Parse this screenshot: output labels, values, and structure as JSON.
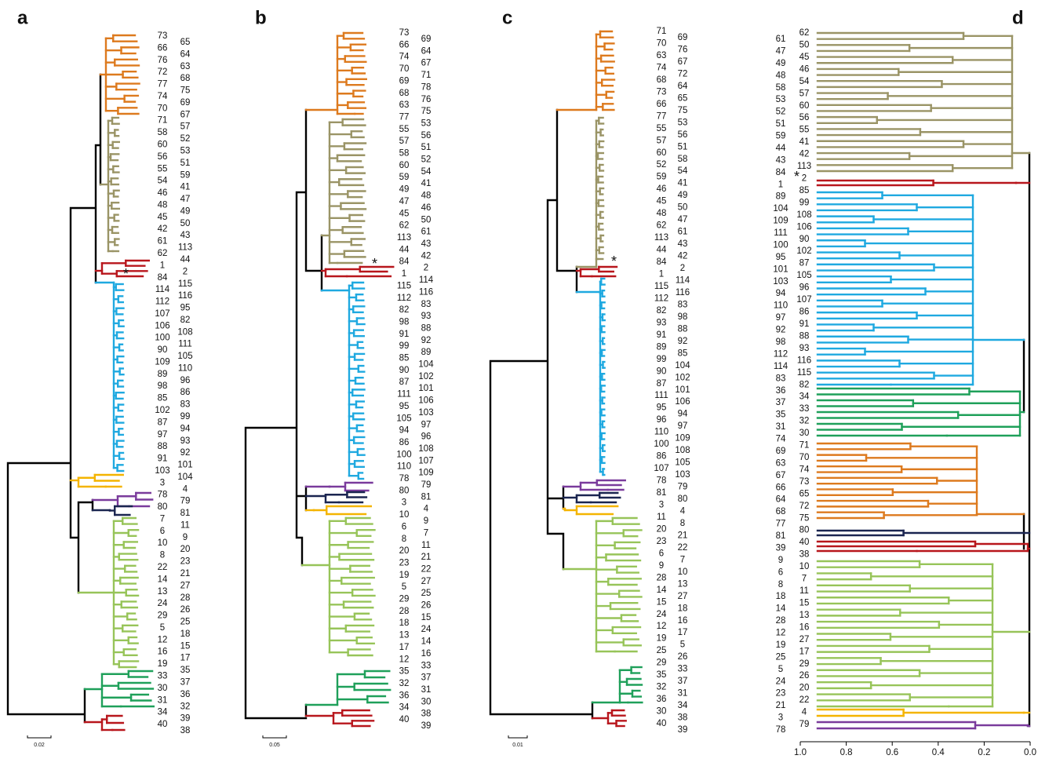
{
  "panels": [
    {
      "letter": "a",
      "asterisk": "*",
      "scale_bar": "0.02",
      "leaves_left": [
        "73",
        "66",
        "76",
        "72",
        "77",
        "74",
        "70",
        "71",
        "58",
        "60",
        "56",
        "55",
        "54",
        "46",
        "48",
        "45",
        "42",
        "61",
        "62",
        "1",
        "84",
        "114",
        "112",
        "107",
        "106",
        "100",
        "90",
        "109",
        "89",
        "98",
        "85",
        "102",
        "87",
        "97",
        "88",
        "91",
        "103",
        "3",
        "78",
        "80",
        "7",
        "6",
        "10",
        "8",
        "22",
        "14",
        "13",
        "24",
        "29",
        "5",
        "12",
        "16",
        "19",
        "33",
        "30",
        "31",
        "34",
        "40"
      ],
      "leaves_right": [
        "65",
        "64",
        "63",
        "68",
        "75",
        "69",
        "67",
        "57",
        "52",
        "53",
        "51",
        "59",
        "41",
        "47",
        "49",
        "50",
        "43",
        "113",
        "44",
        "2",
        "115",
        "116",
        "95",
        "82",
        "108",
        "111",
        "105",
        "110",
        "96",
        "86",
        "83",
        "99",
        "94",
        "93",
        "92",
        "101",
        "104",
        "4",
        "79",
        "81",
        "11",
        "9",
        "20",
        "23",
        "21",
        "27",
        "28",
        "26",
        "25",
        "18",
        "15",
        "17",
        "35",
        "37",
        "36",
        "32",
        "39",
        "38"
      ]
    },
    {
      "letter": "b",
      "asterisk": "*",
      "scale_bar": "0.05",
      "leaves_left": [
        "73",
        "66",
        "74",
        "70",
        "69",
        "68",
        "63",
        "77",
        "55",
        "57",
        "58",
        "60",
        "59",
        "49",
        "47",
        "45",
        "62",
        "113",
        "44",
        "84",
        "1",
        "115",
        "112",
        "82",
        "98",
        "91",
        "99",
        "85",
        "90",
        "87",
        "111",
        "95",
        "105",
        "94",
        "86",
        "100",
        "110",
        "78",
        "80",
        "3",
        "10",
        "6",
        "8",
        "20",
        "23",
        "19",
        "5",
        "29",
        "28",
        "18",
        "13",
        "17",
        "12",
        "35",
        "32",
        "36",
        "34",
        "40"
      ],
      "leaves_right": [
        "69",
        "64",
        "67",
        "71",
        "78",
        "76",
        "75",
        "53",
        "56",
        "51",
        "52",
        "54",
        "41",
        "48",
        "46",
        "50",
        "61",
        "43",
        "42",
        "2",
        "114",
        "116",
        "83",
        "93",
        "88",
        "92",
        "89",
        "104",
        "102",
        "101",
        "106",
        "103",
        "97",
        "96",
        "108",
        "107",
        "109",
        "79",
        "81",
        "4",
        "9",
        "7",
        "11",
        "21",
        "22",
        "27",
        "25",
        "26",
        "15",
        "24",
        "14",
        "16",
        "33",
        "37",
        "31",
        "30",
        "38",
        "39"
      ]
    },
    {
      "letter": "c",
      "asterisk": "*",
      "scale_bar": "0.01",
      "leaves_left": [
        "71",
        "70",
        "63",
        "74",
        "68",
        "73",
        "66",
        "77",
        "55",
        "57",
        "60",
        "52",
        "59",
        "46",
        "45",
        "48",
        "62",
        "113",
        "44",
        "84",
        "1",
        "115",
        "112",
        "82",
        "93",
        "91",
        "89",
        "99",
        "90",
        "87",
        "111",
        "95",
        "96",
        "110",
        "100",
        "86",
        "107",
        "78",
        "81",
        "3",
        "11",
        "20",
        "23",
        "6",
        "9",
        "28",
        "14",
        "15",
        "24",
        "12",
        "19",
        "25",
        "29",
        "35",
        "32",
        "36",
        "30",
        "40"
      ],
      "leaves_right": [
        "69",
        "76",
        "67",
        "72",
        "64",
        "65",
        "75",
        "53",
        "56",
        "51",
        "58",
        "54",
        "41",
        "49",
        "50",
        "47",
        "61",
        "43",
        "42",
        "2",
        "114",
        "116",
        "83",
        "98",
        "88",
        "92",
        "85",
        "104",
        "102",
        "101",
        "106",
        "94",
        "97",
        "109",
        "108",
        "105",
        "103",
        "79",
        "80",
        "4",
        "8",
        "21",
        "22",
        "7",
        "10",
        "13",
        "27",
        "18",
        "16",
        "17",
        "5",
        "26",
        "33",
        "37",
        "31",
        "34",
        "38",
        "39"
      ]
    },
    {
      "letter": "d",
      "asterisk": "*",
      "leaves_left": [
        "61",
        "47",
        "49",
        "48",
        "58",
        "53",
        "52",
        "51",
        "59",
        "44",
        "43",
        "84",
        "1",
        "89",
        "104",
        "109",
        "111",
        "100",
        "95",
        "101",
        "103",
        "94",
        "110",
        "97",
        "92",
        "98",
        "112",
        "114",
        "83",
        "36",
        "37",
        "35",
        "31",
        "74",
        "69",
        "63",
        "67",
        "66",
        "64",
        "68",
        "77",
        "81",
        "39",
        "9",
        "6",
        "8",
        "18",
        "14",
        "28",
        "12",
        "19",
        "25",
        "5",
        "24",
        "23",
        "21",
        "3",
        "78"
      ],
      "leaves_right": [
        "62",
        "50",
        "45",
        "46",
        "54",
        "57",
        "60",
        "56",
        "55",
        "41",
        "42",
        "113",
        "2",
        "85",
        "99",
        "108",
        "106",
        "90",
        "102",
        "87",
        "105",
        "96",
        "107",
        "86",
        "91",
        "88",
        "93",
        "116",
        "115",
        "82",
        "34",
        "33",
        "32",
        "30",
        "71",
        "70",
        "74",
        "73",
        "65",
        "72",
        "75",
        "80",
        "40",
        "38",
        "10",
        "7",
        "11",
        "15",
        "13",
        "16",
        "27",
        "17",
        "29",
        "26",
        "20",
        "22",
        "4",
        "79"
      ],
      "axis": {
        "xlim": [
          1,
          0
        ],
        "xticks": [
          {
            "value": 1,
            "label": "1.0"
          },
          0.8,
          0.6,
          0.4,
          0.2,
          {
            "value": 0,
            "label": "0.0"
          }
        ]
      }
    }
  ]
}
